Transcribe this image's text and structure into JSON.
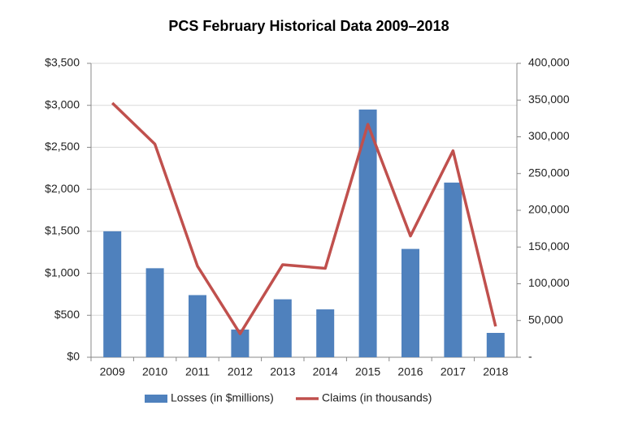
{
  "chart_data": {
    "type": "combo",
    "title": "PCS February Historical Data 2009–2018",
    "categories": [
      "2009",
      "2010",
      "2011",
      "2012",
      "2013",
      "2014",
      "2015",
      "2016",
      "2017",
      "2018"
    ],
    "series": [
      {
        "name": "Losses (in $millions)",
        "type": "bar",
        "color": "#4f81bd",
        "axis": "y",
        "values": [
          1500,
          1060,
          740,
          330,
          690,
          570,
          2950,
          1290,
          2080,
          290
        ]
      },
      {
        "name": "Claims (in thousands)",
        "type": "line",
        "color": "#c0504d",
        "axis": "y2",
        "values": [
          346000,
          290000,
          124000,
          32000,
          126000,
          121000,
          317000,
          165000,
          281000,
          42000
        ]
      }
    ],
    "ylim": [
      0,
      3500
    ],
    "yticks": [
      {
        "value": 0,
        "label": "$0"
      },
      {
        "value": 500,
        "label": "$500"
      },
      {
        "value": 1000,
        "label": "$1,000"
      },
      {
        "value": 1500,
        "label": "$1,500"
      },
      {
        "value": 2000,
        "label": "$2,000"
      },
      {
        "value": 2500,
        "label": "$2,500"
      },
      {
        "value": 3000,
        "label": "$3,000"
      },
      {
        "value": 3500,
        "label": "$3,500"
      }
    ],
    "y2lim": [
      0,
      400000
    ],
    "y2ticks": [
      {
        "value": 0,
        "label": "-"
      },
      {
        "value": 50000,
        "label": "50,000"
      },
      {
        "value": 100000,
        "label": "100,000"
      },
      {
        "value": 150000,
        "label": "150,000"
      },
      {
        "value": 200000,
        "label": "200,000"
      },
      {
        "value": 250000,
        "label": "250,000"
      },
      {
        "value": 300000,
        "label": "300,000"
      },
      {
        "value": 350000,
        "label": "350,000"
      },
      {
        "value": 400000,
        "label": "400,000"
      }
    ],
    "grid": true,
    "legend": "bottom"
  }
}
